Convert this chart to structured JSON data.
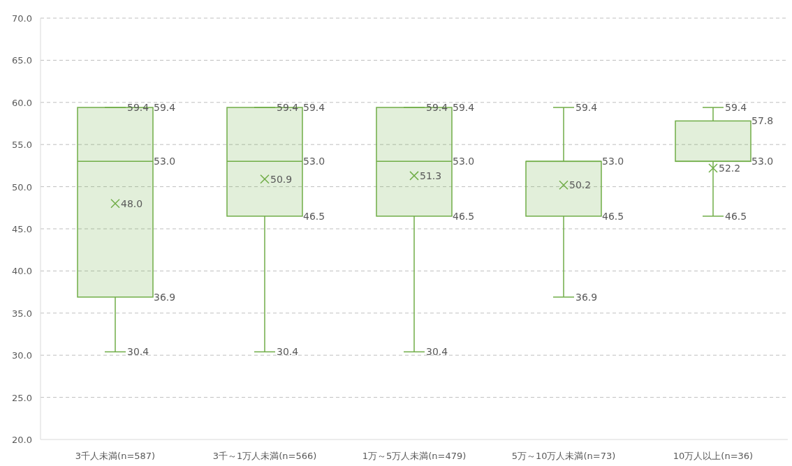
{
  "chart_data": {
    "type": "box",
    "categories": [
      "3千人未満(n=587)",
      "3千～1万人未満(n=566)",
      "1万～5万人未満(n=479)",
      "5万～10万人未満(n=73)",
      "10万人以上(n=36)"
    ],
    "series": [
      {
        "color": "#70ad47",
        "boxes": [
          {
            "low": 30.4,
            "q1": 36.9,
            "median": 53.0,
            "q3": 59.4,
            "high": 59.4,
            "mean": 48.0
          },
          {
            "low": 30.4,
            "q1": 46.5,
            "median": 53.0,
            "q3": 59.4,
            "high": 59.4,
            "mean": 50.9
          },
          {
            "low": 30.4,
            "q1": 46.5,
            "median": 53.0,
            "q3": 59.4,
            "high": 59.4,
            "mean": 51.3
          },
          {
            "low": 36.9,
            "q1": 46.5,
            "median": 53.0,
            "q3": 53.0,
            "high": 59.4,
            "mean": 50.2
          },
          {
            "low": 46.5,
            "q1": 53.0,
            "median": 53.0,
            "q3": 57.8,
            "high": 59.4,
            "mean": 52.2
          }
        ]
      }
    ],
    "ylim": [
      20,
      70
    ],
    "yticks": [
      {
        "value": 20,
        "label": "20.0"
      },
      {
        "value": 25,
        "label": "25.0"
      },
      {
        "value": 30,
        "label": "30.0"
      },
      {
        "value": 35,
        "label": "35.0"
      },
      {
        "value": 40,
        "label": "40.0"
      },
      {
        "value": 45,
        "label": "45.0"
      },
      {
        "value": 50,
        "label": "50.0"
      },
      {
        "value": 55,
        "label": "55.0"
      },
      {
        "value": 60,
        "label": "60.0"
      },
      {
        "value": 65,
        "label": "65.0"
      },
      {
        "value": 70,
        "label": "70.0"
      }
    ],
    "grid": "y",
    "marker": "cross",
    "data_labels": true,
    "annotations": [
      {
        "text": "59.4",
        "x": "3千人未満(n=587)",
        "y": 59.4
      },
      {
        "text": "30.4",
        "x": "3千人未満(n=587)",
        "y": 30.4
      },
      "59.4",
      "53.0",
      "36.9",
      "48.0",
      {
        "text": "59.4",
        "x": "3千～1万人未満(n=566)",
        "y": 59.4
      },
      {
        "text": "30.4",
        "x": "3千～1万人未満(n=566)",
        "y": 30.4
      },
      "59.4",
      "53.0",
      "46.5",
      "50.9",
      {
        "text": "59.4",
        "x": "1万～5万人未満(n=479)",
        "y": 59.4
      },
      {
        "text": "30.4",
        "x": "1万～5万人未満(n=479)",
        "y": 30.4
      },
      "59.4",
      "53.0",
      "46.5",
      "51.3",
      {
        "text": "59.4",
        "x": "5万～10万人未満(n=73)",
        "y": 59.4
      },
      {
        "text": "36.9",
        "x": "5万～10万人未満(n=73)",
        "y": 36.9
      },
      "53.0",
      "46.5",
      "50.2",
      {
        "text": "59.4",
        "x": "10万人以上(n=36)",
        "y": 59.4
      },
      {
        "text": "46.5",
        "x": "10万人以上(n=36)",
        "y": 46.5
      },
      "57.8",
      "53.0",
      "52.2"
    ]
  }
}
